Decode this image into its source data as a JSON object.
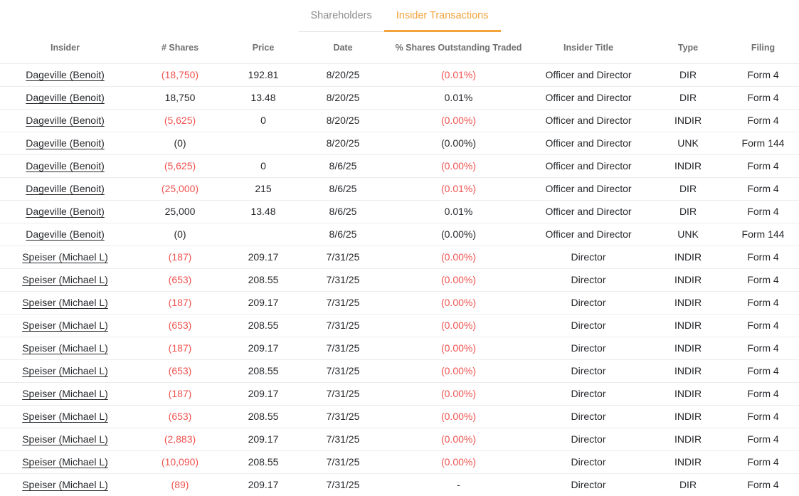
{
  "tabs": [
    {
      "id": "shareholders",
      "label": "Shareholders",
      "active": false
    },
    {
      "id": "insider-transactions",
      "label": "Insider Transactions",
      "active": true
    }
  ],
  "colors": {
    "accent_orange": "#f2a33c",
    "negative_red": "#ef5350",
    "header_gray": "#6f6f6f",
    "inactive_tab_gray": "#8c8c8c",
    "row_border": "#ececec"
  },
  "table": {
    "columns": [
      "Insider",
      "# Shares",
      "Price",
      "Date",
      "% Shares Outstanding Traded",
      "Insider Title",
      "Type",
      "Filing"
    ],
    "rows": [
      {
        "insider": "Dageville (Benoit)",
        "shares": "(18,750)",
        "shares_neg": true,
        "price": "192.81",
        "date": "8/20/25",
        "pct": "(0.01%)",
        "pct_neg": true,
        "title": "Officer and Director",
        "type": "DIR",
        "filing": "Form 4"
      },
      {
        "insider": "Dageville (Benoit)",
        "shares": "18,750",
        "shares_neg": false,
        "price": "13.48",
        "date": "8/20/25",
        "pct": "0.01%",
        "pct_neg": false,
        "title": "Officer and Director",
        "type": "DIR",
        "filing": "Form 4"
      },
      {
        "insider": "Dageville (Benoit)",
        "shares": "(5,625)",
        "shares_neg": true,
        "price": "0",
        "date": "8/20/25",
        "pct": "(0.00%)",
        "pct_neg": true,
        "title": "Officer and Director",
        "type": "INDIR",
        "filing": "Form 4"
      },
      {
        "insider": "Dageville (Benoit)",
        "shares": "(0)",
        "shares_neg": false,
        "price": "",
        "date": "8/20/25",
        "pct": "(0.00%)",
        "pct_neg": false,
        "title": "Officer and Director",
        "type": "UNK",
        "filing": "Form 144"
      },
      {
        "insider": "Dageville (Benoit)",
        "shares": "(5,625)",
        "shares_neg": true,
        "price": "0",
        "date": "8/6/25",
        "pct": "(0.00%)",
        "pct_neg": true,
        "title": "Officer and Director",
        "type": "INDIR",
        "filing": "Form 4"
      },
      {
        "insider": "Dageville (Benoit)",
        "shares": "(25,000)",
        "shares_neg": true,
        "price": "215",
        "date": "8/6/25",
        "pct": "(0.01%)",
        "pct_neg": true,
        "title": "Officer and Director",
        "type": "DIR",
        "filing": "Form 4"
      },
      {
        "insider": "Dageville (Benoit)",
        "shares": "25,000",
        "shares_neg": false,
        "price": "13.48",
        "date": "8/6/25",
        "pct": "0.01%",
        "pct_neg": false,
        "title": "Officer and Director",
        "type": "DIR",
        "filing": "Form 4"
      },
      {
        "insider": "Dageville (Benoit)",
        "shares": "(0)",
        "shares_neg": false,
        "price": "",
        "date": "8/6/25",
        "pct": "(0.00%)",
        "pct_neg": false,
        "title": "Officer and Director",
        "type": "UNK",
        "filing": "Form 144"
      },
      {
        "insider": "Speiser (Michael L)",
        "shares": "(187)",
        "shares_neg": true,
        "price": "209.17",
        "date": "7/31/25",
        "pct": "(0.00%)",
        "pct_neg": true,
        "title": "Director",
        "type": "INDIR",
        "filing": "Form 4"
      },
      {
        "insider": "Speiser (Michael L)",
        "shares": "(653)",
        "shares_neg": true,
        "price": "208.55",
        "date": "7/31/25",
        "pct": "(0.00%)",
        "pct_neg": true,
        "title": "Director",
        "type": "INDIR",
        "filing": "Form 4"
      },
      {
        "insider": "Speiser (Michael L)",
        "shares": "(187)",
        "shares_neg": true,
        "price": "209.17",
        "date": "7/31/25",
        "pct": "(0.00%)",
        "pct_neg": true,
        "title": "Director",
        "type": "INDIR",
        "filing": "Form 4"
      },
      {
        "insider": "Speiser (Michael L)",
        "shares": "(653)",
        "shares_neg": true,
        "price": "208.55",
        "date": "7/31/25",
        "pct": "(0.00%)",
        "pct_neg": true,
        "title": "Director",
        "type": "INDIR",
        "filing": "Form 4"
      },
      {
        "insider": "Speiser (Michael L)",
        "shares": "(187)",
        "shares_neg": true,
        "price": "209.17",
        "date": "7/31/25",
        "pct": "(0.00%)",
        "pct_neg": true,
        "title": "Director",
        "type": "INDIR",
        "filing": "Form 4"
      },
      {
        "insider": "Speiser (Michael L)",
        "shares": "(653)",
        "shares_neg": true,
        "price": "208.55",
        "date": "7/31/25",
        "pct": "(0.00%)",
        "pct_neg": true,
        "title": "Director",
        "type": "INDIR",
        "filing": "Form 4"
      },
      {
        "insider": "Speiser (Michael L)",
        "shares": "(187)",
        "shares_neg": true,
        "price": "209.17",
        "date": "7/31/25",
        "pct": "(0.00%)",
        "pct_neg": true,
        "title": "Director",
        "type": "INDIR",
        "filing": "Form 4"
      },
      {
        "insider": "Speiser (Michael L)",
        "shares": "(653)",
        "shares_neg": true,
        "price": "208.55",
        "date": "7/31/25",
        "pct": "(0.00%)",
        "pct_neg": true,
        "title": "Director",
        "type": "INDIR",
        "filing": "Form 4"
      },
      {
        "insider": "Speiser (Michael L)",
        "shares": "(2,883)",
        "shares_neg": true,
        "price": "209.17",
        "date": "7/31/25",
        "pct": "(0.00%)",
        "pct_neg": true,
        "title": "Director",
        "type": "INDIR",
        "filing": "Form 4"
      },
      {
        "insider": "Speiser (Michael L)",
        "shares": "(10,090)",
        "shares_neg": true,
        "price": "208.55",
        "date": "7/31/25",
        "pct": "(0.00%)",
        "pct_neg": true,
        "title": "Director",
        "type": "INDIR",
        "filing": "Form 4"
      },
      {
        "insider": "Speiser (Michael L)",
        "shares": "(89)",
        "shares_neg": true,
        "price": "209.17",
        "date": "7/31/25",
        "pct": "-",
        "pct_neg": false,
        "title": "Director",
        "type": "DIR",
        "filing": "Form 4"
      }
    ]
  }
}
